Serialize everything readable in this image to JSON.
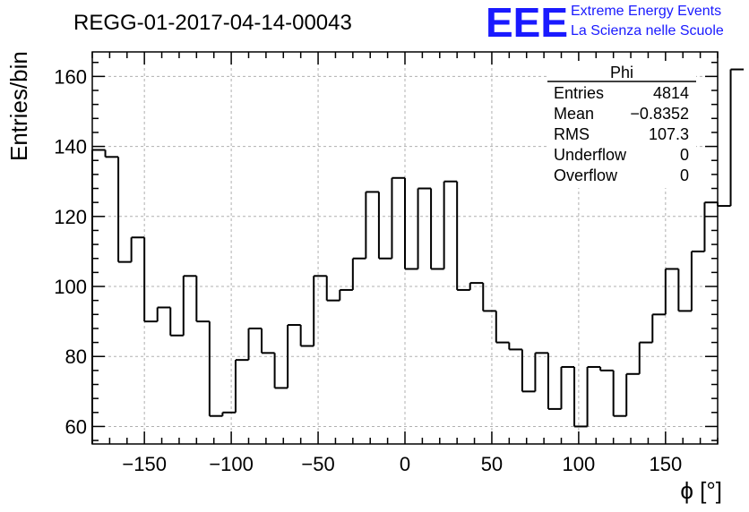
{
  "header": {
    "run_title": "REGG-01-2017-04-14-00043",
    "logo_mark": "EEE",
    "logo_line1": "Extreme Energy Events",
    "logo_line2": "La Scienza nelle Scuole",
    "logo_color": "#1a1aff"
  },
  "stats": {
    "title": "Phi",
    "rows": [
      {
        "label": "Entries",
        "value": "4814"
      },
      {
        "label": "Mean",
        "value": "−0.8352"
      },
      {
        "label": "RMS",
        "value": "107.3"
      },
      {
        "label": "Underflow",
        "value": "0"
      },
      {
        "label": "Overflow",
        "value": "0"
      }
    ]
  },
  "chart_data": {
    "type": "bar",
    "histogram": true,
    "title": "REGG-01-2017-04-14-00043",
    "xlabel": "ϕ [°]",
    "ylabel": "Entries/bin",
    "xlim": [
      -180,
      180
    ],
    "ylim": [
      55,
      167
    ],
    "xticks": [
      -150,
      -100,
      -50,
      0,
      50,
      100,
      150
    ],
    "xtick_labels": [
      "−150",
      "−100",
      "−50",
      "0",
      "50",
      "100",
      "150"
    ],
    "yticks": [
      60,
      80,
      100,
      120,
      140,
      160
    ],
    "ytick_labels": [
      "60",
      "80",
      "100",
      "120",
      "140",
      "160"
    ],
    "grid": true,
    "bin_width": 7.5,
    "values": [
      139,
      137,
      107,
      114,
      90,
      94,
      86,
      103,
      90,
      63,
      64,
      79,
      88,
      81,
      71,
      89,
      83,
      103,
      96,
      99,
      108,
      127,
      108,
      131,
      105,
      128,
      105,
      130,
      99,
      101,
      93,
      84,
      82,
      70,
      81,
      65,
      77,
      60,
      77,
      76,
      63,
      75,
      84,
      92,
      105,
      93,
      110,
      124,
      123,
      162
    ],
    "line_color": "#000000"
  }
}
